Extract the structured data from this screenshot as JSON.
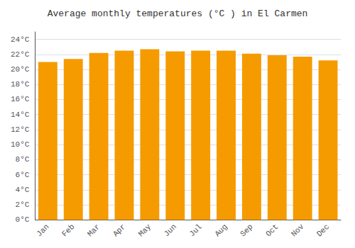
{
  "chart_data": {
    "type": "bar",
    "title": "Average monthly temperatures (°C ) in El Carmen",
    "categories": [
      "Jan",
      "Feb",
      "Mar",
      "Apr",
      "May",
      "Jun",
      "Jul",
      "Aug",
      "Sep",
      "Oct",
      "Nov",
      "Dec"
    ],
    "values": [
      21.0,
      21.4,
      22.2,
      22.5,
      22.7,
      22.4,
      22.5,
      22.5,
      22.1,
      21.9,
      21.7,
      21.2
    ],
    "color": "#F59B00",
    "ylim": [
      0,
      25
    ],
    "yticks": [
      {
        "value": 0,
        "label": "0°C"
      },
      {
        "value": 2,
        "label": "2°C"
      },
      {
        "value": 4,
        "label": "4°C"
      },
      {
        "value": 6,
        "label": "6°C"
      },
      {
        "value": 8,
        "label": "8°C"
      },
      {
        "value": 10,
        "label": "10°C"
      },
      {
        "value": 12,
        "label": "12°C"
      },
      {
        "value": 14,
        "label": "14°C"
      },
      {
        "value": 16,
        "label": "16°C"
      },
      {
        "value": 18,
        "label": "18°C"
      },
      {
        "value": 20,
        "label": "20°C"
      },
      {
        "value": 22,
        "label": "22°C"
      },
      {
        "value": 24,
        "label": "24°C"
      }
    ],
    "grid": true
  }
}
